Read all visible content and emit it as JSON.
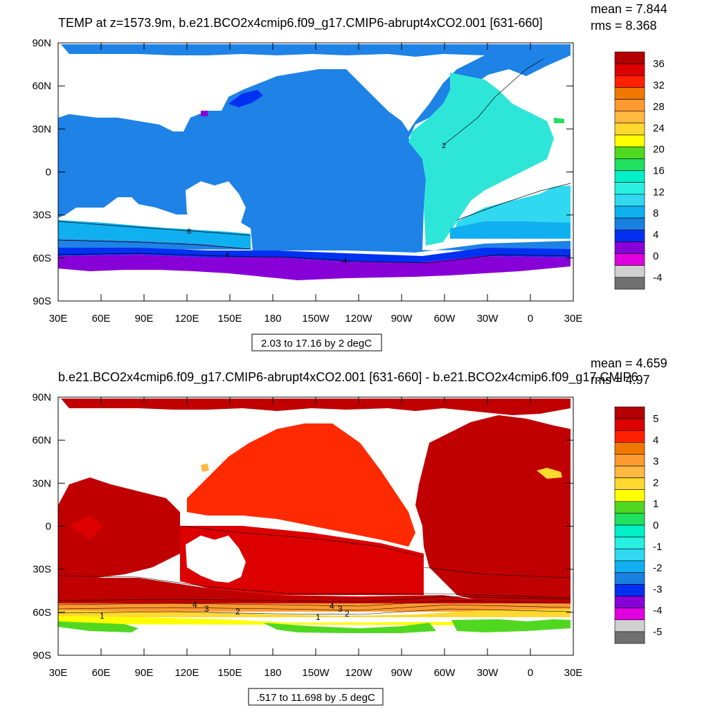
{
  "chart_data": [
    {
      "type": "heatmap",
      "title": "TEMP at z=1573.9m, b.e21.BCO2x4cmip6.f09_g17.CMIP6-abrupt4xCO2.001 [631-660]",
      "stat_mean": "mean = 7.844",
      "stat_rms": "rms = 8.368",
      "range_note": "2.03 to 17.16 by 2 degC",
      "x_ticks": [
        "30E",
        "60E",
        "90E",
        "120E",
        "150E",
        "180",
        "150W",
        "120W",
        "90W",
        "60W",
        "30W",
        "0",
        "30E"
      ],
      "y_ticks": [
        "90N",
        "60N",
        "30N",
        "0",
        "30S",
        "60S",
        "90S"
      ],
      "colorbar_labels": [
        "36",
        "32",
        "28",
        "24",
        "20",
        "16",
        "12",
        "8",
        "4",
        "0",
        "-4"
      ],
      "colorbar_colors": [
        "#b40000",
        "#dc0000",
        "#ff2000",
        "#f07800",
        "#ff9a30",
        "#ffb840",
        "#ffd830",
        "#ffff00",
        "#50d820",
        "#20e060",
        "#00f0c8",
        "#28f0e0",
        "#30d8f0",
        "#10b0f0",
        "#1880e0",
        "#0030f0",
        "#8800d8",
        "#e000e0",
        "#d0d0d0",
        "#707070"
      ],
      "contour_labels": [
        "8",
        "4",
        "4",
        "2"
      ]
    },
    {
      "type": "heatmap",
      "title": "b.e21.BCO2x4cmip6.f09_g17.CMIP6-abrupt4xCO2.001 [631-660] - b.e21.BCO2x4cmip6.f09_g17.CMIP6",
      "stat_mean": "mean = 4.659",
      "stat_rms": "rms = 4.97",
      "range_note": ".517 to 11.698 by .5 degC",
      "x_ticks": [
        "30E",
        "60E",
        "90E",
        "120E",
        "150E",
        "180",
        "150W",
        "120W",
        "90W",
        "60W",
        "30W",
        "0",
        "30E"
      ],
      "y_ticks": [
        "90N",
        "60N",
        "30N",
        "0",
        "30S",
        "60S",
        "90S"
      ],
      "colorbar_labels": [
        "5",
        "4",
        "3",
        "2",
        "1",
        "0",
        "-1",
        "-2",
        "-3",
        "-4",
        "-5"
      ],
      "colorbar_colors": [
        "#b40000",
        "#dc0000",
        "#ff2000",
        "#f07800",
        "#ff9a30",
        "#ffb840",
        "#ffd830",
        "#ffff00",
        "#50d820",
        "#20e060",
        "#00f0c8",
        "#28f0e0",
        "#30d8f0",
        "#10b0f0",
        "#1880e0",
        "#0030f0",
        "#8800d8",
        "#e000e0",
        "#d0d0d0",
        "#707070"
      ],
      "contour_labels": [
        "1",
        "4",
        "3",
        "2",
        "4",
        "3",
        "2",
        "1"
      ]
    }
  ]
}
